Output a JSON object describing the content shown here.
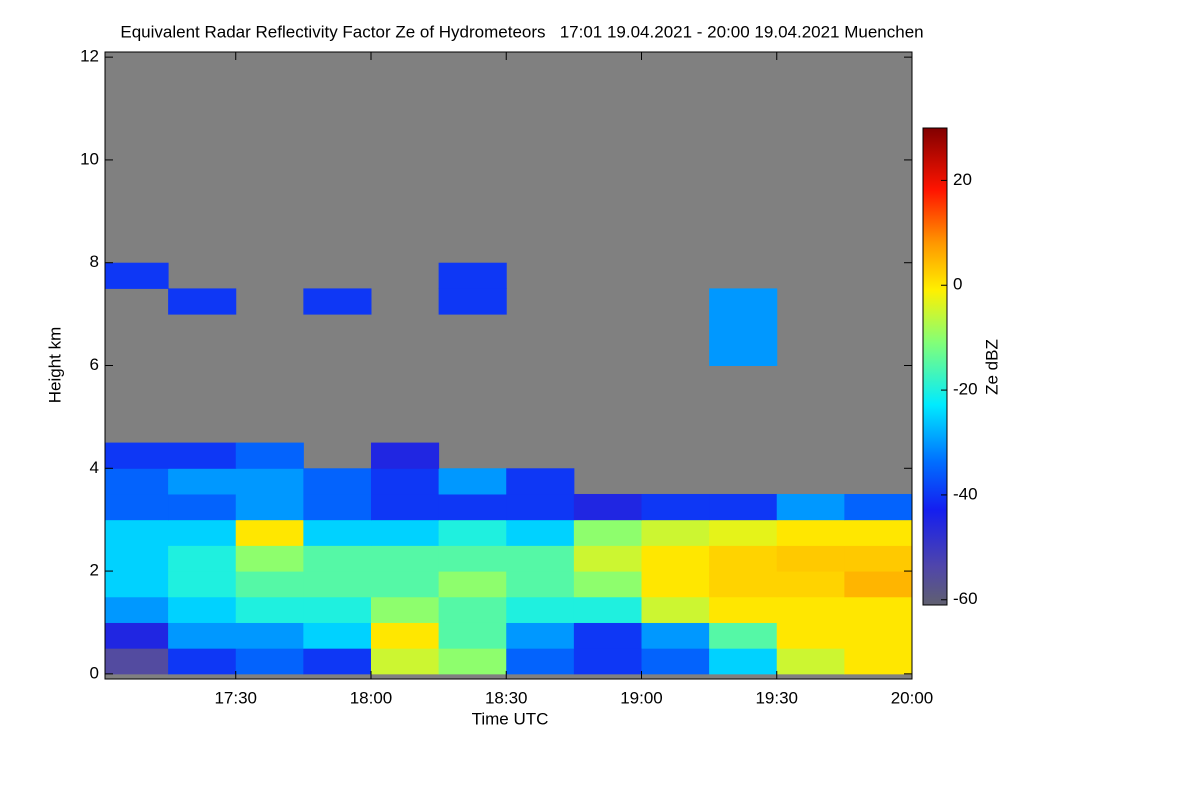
{
  "chart_data": {
    "type": "heatmap",
    "title": "Equivalent Radar Reflectivity Factor Ze of Hydrometeors   17:01 19.04.2021 - 20:00 19.04.2021 Muenchen",
    "x_label": "Time UTC",
    "y_label": "Height km",
    "background_color": "#808080",
    "x": [
      17.125,
      17.375,
      17.625,
      17.875,
      18.125,
      18.375,
      18.625,
      18.875,
      19.125,
      19.375,
      19.625,
      19.875
    ],
    "y": [
      0.25,
      0.75,
      1.25,
      1.75,
      2.25,
      2.75,
      3.25,
      3.75,
      4.25,
      4.75,
      5.25,
      5.75,
      6.25,
      6.75,
      7.25,
      7.75
    ],
    "values": [
      [
        -55,
        -40,
        -35,
        -40,
        -5,
        -10,
        -35,
        -40,
        -35,
        -25,
        -5,
        0
      ],
      [
        -45,
        -30,
        -30,
        -25,
        0,
        -15,
        -30,
        -40,
        -30,
        -15,
        0,
        0
      ],
      [
        -30,
        -25,
        -20,
        -20,
        -10,
        -15,
        -20,
        -20,
        -5,
        0,
        0,
        0
      ],
      [
        -25,
        -20,
        -15,
        -15,
        -15,
        -10,
        -15,
        -10,
        0,
        2,
        2,
        5
      ],
      [
        -25,
        -20,
        -10,
        -15,
        -15,
        -15,
        -15,
        -5,
        0,
        2,
        3,
        3
      ],
      [
        -25,
        -25,
        0,
        -25,
        -25,
        -20,
        -25,
        -10,
        -5,
        -3,
        0,
        0
      ],
      [
        -35,
        -35,
        -30,
        -35,
        -40,
        -40,
        -40,
        -45,
        -40,
        -40,
        -30,
        -35
      ],
      [
        -35,
        -30,
        -30,
        -35,
        -40,
        -30,
        -40,
        null,
        null,
        null,
        null,
        null
      ],
      [
        -40,
        -40,
        -35,
        null,
        -45,
        null,
        null,
        null,
        null,
        null,
        null,
        null
      ],
      [
        null,
        null,
        null,
        null,
        null,
        null,
        null,
        null,
        null,
        null,
        null,
        null
      ],
      [
        null,
        null,
        null,
        null,
        null,
        null,
        null,
        null,
        null,
        null,
        null,
        null
      ],
      [
        null,
        null,
        null,
        null,
        null,
        null,
        null,
        null,
        null,
        null,
        null,
        null
      ],
      [
        null,
        null,
        null,
        null,
        null,
        null,
        null,
        null,
        null,
        -30,
        null,
        null
      ],
      [
        null,
        null,
        null,
        null,
        null,
        null,
        null,
        null,
        null,
        -30,
        null,
        null
      ],
      [
        null,
        -40,
        null,
        -40,
        null,
        -40,
        null,
        null,
        null,
        -30,
        null,
        null
      ],
      [
        -40,
        null,
        null,
        null,
        null,
        -40,
        null,
        null,
        null,
        null,
        null,
        null
      ]
    ],
    "xlim": [
      17.0167,
      20.0
    ],
    "xticks": [
      {
        "value": 17.5,
        "label": "17:30"
      },
      {
        "value": 18.0,
        "label": "18:00"
      },
      {
        "value": 18.5,
        "label": "18:30"
      },
      {
        "value": 19.0,
        "label": "19:00"
      },
      {
        "value": 19.5,
        "label": "19:30"
      },
      {
        "value": 20.0,
        "label": "20:00"
      }
    ],
    "ylim": [
      -0.1,
      12.1
    ],
    "yticks": [
      0,
      2,
      4,
      6,
      8,
      10,
      12
    ],
    "colorbar": {
      "label": "Ze dBZ",
      "lim": [
        -61,
        30
      ],
      "ticks": [
        20,
        0,
        -20,
        -40,
        -60
      ]
    }
  }
}
